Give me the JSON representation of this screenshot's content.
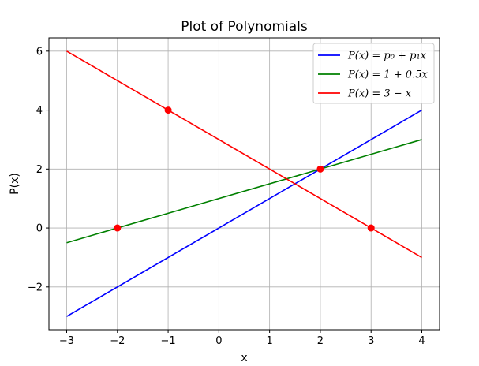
{
  "chart_data": {
    "type": "line",
    "title": "Plot of Polynomials",
    "xlabel": "x",
    "ylabel": "P(x)",
    "xlim": [
      -3.35,
      4.35
    ],
    "ylim": [
      -3.45,
      6.45
    ],
    "xticks": [
      -3,
      -2,
      -1,
      0,
      1,
      2,
      3,
      4
    ],
    "yticks": [
      -2,
      0,
      2,
      4,
      6
    ],
    "xtick_labels": [
      "−3",
      "−2",
      "−1",
      "0",
      "1",
      "2",
      "3",
      "4"
    ],
    "ytick_labels": [
      "−2",
      "0",
      "2",
      "4",
      "6"
    ],
    "grid": true,
    "legend_position": "top-right",
    "series": [
      {
        "name": "P(x) = p₀ + p₁x",
        "color": "#0000ff",
        "x": [
          -3,
          4
        ],
        "y": [
          -3,
          4
        ]
      },
      {
        "name": "P(x) = 1 + 0.5x",
        "color": "#008000",
        "x": [
          -3,
          4
        ],
        "y": [
          -0.5,
          3
        ]
      },
      {
        "name": "P(x) = 3 − x",
        "color": "#ff0000",
        "x": [
          -3,
          4
        ],
        "y": [
          6,
          -1
        ]
      }
    ],
    "points": {
      "color": "#ff0000",
      "x": [
        -2,
        -1,
        2,
        3
      ],
      "y": [
        0,
        4,
        2,
        0
      ]
    }
  }
}
